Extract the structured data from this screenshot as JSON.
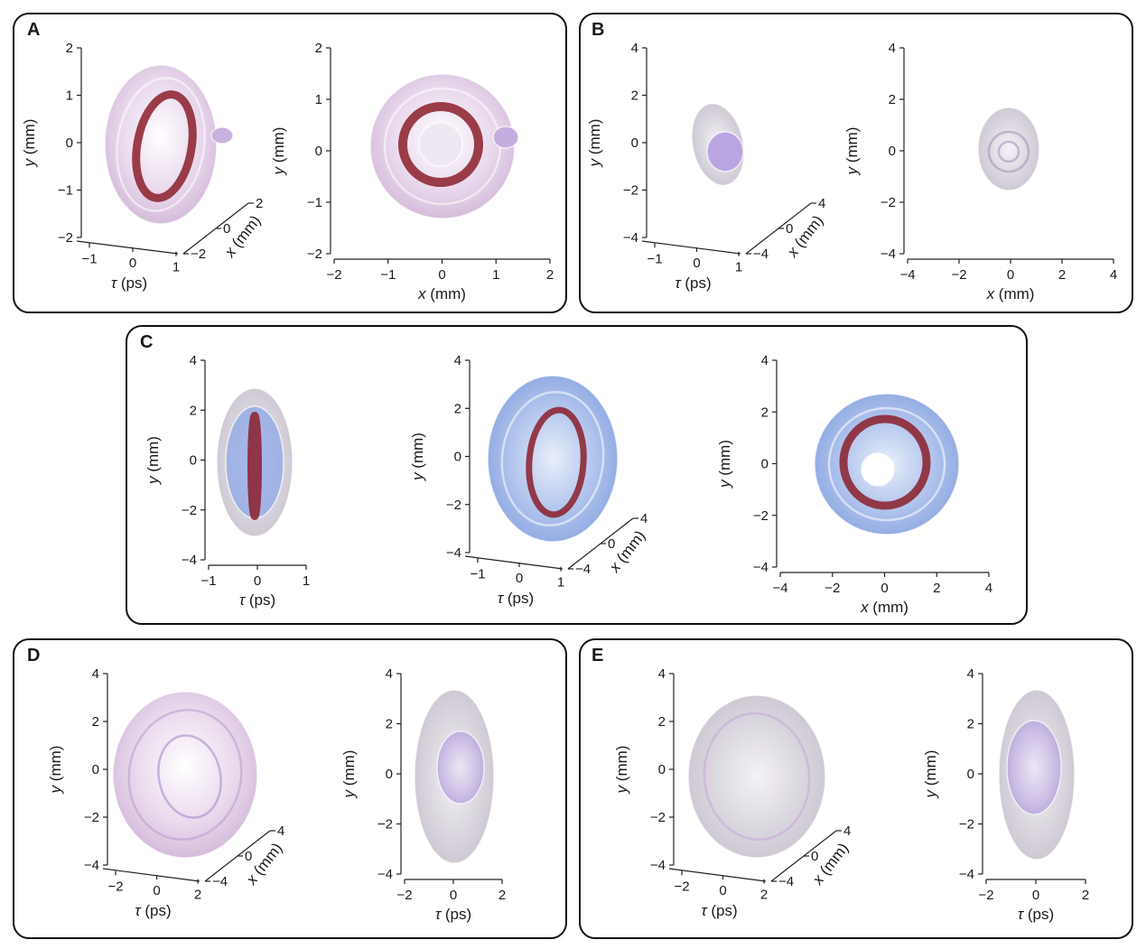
{
  "figure": {
    "panels": [
      {
        "label": "A",
        "plots": [
          {
            "kind": "oblique",
            "y_ticks": [
              "2",
              "1",
              "0",
              "−1",
              "−2"
            ],
            "tau_ticks": [
              "−1",
              "0",
              "1"
            ],
            "x_ticks": [
              "2",
              "0",
              "−2"
            ]
          },
          {
            "kind": "front",
            "y_ticks": [
              "2",
              "1",
              "0",
              "−1",
              "−2"
            ],
            "x_ticks": [
              "−2",
              "−1",
              "0",
              "1",
              "2"
            ]
          }
        ]
      },
      {
        "label": "B",
        "plots": [
          {
            "kind": "oblique",
            "y_ticks": [
              "4",
              "2",
              "0",
              "−2",
              "−4"
            ],
            "tau_ticks": [
              "−1",
              "0",
              "1"
            ],
            "x_ticks": [
              "4",
              "0",
              "−4"
            ]
          },
          {
            "kind": "front",
            "y_ticks": [
              "4",
              "2",
              "0",
              "−2",
              "−4"
            ],
            "x_ticks": [
              "−4",
              "−2",
              "0",
              "2",
              "4"
            ]
          }
        ]
      },
      {
        "label": "C",
        "plots": [
          {
            "kind": "side",
            "y_ticks": [
              "4",
              "2",
              "0",
              "−2",
              "−4"
            ],
            "tau_ticks": [
              "−1",
              "0",
              "1"
            ]
          },
          {
            "kind": "oblique",
            "y_ticks": [
              "4",
              "2",
              "0",
              "−2",
              "−4"
            ],
            "tau_ticks": [
              "−1",
              "0",
              "1"
            ],
            "x_ticks": [
              "4",
              "0",
              "−4"
            ]
          },
          {
            "kind": "front",
            "y_ticks": [
              "4",
              "2",
              "0",
              "−2",
              "−4"
            ],
            "x_ticks": [
              "−4",
              "−2",
              "0",
              "2",
              "4"
            ]
          }
        ]
      },
      {
        "label": "D",
        "plots": [
          {
            "kind": "oblique",
            "y_ticks": [
              "4",
              "2",
              "0",
              "−2",
              "−4"
            ],
            "tau_ticks": [
              "−2",
              "0",
              "2"
            ],
            "x_ticks": [
              "4",
              "0",
              "−4"
            ]
          },
          {
            "kind": "side",
            "y_ticks": [
              "4",
              "2",
              "0",
              "−2",
              "−4"
            ],
            "tau_ticks": [
              "−2",
              "0",
              "2"
            ]
          }
        ]
      },
      {
        "label": "E",
        "plots": [
          {
            "kind": "oblique",
            "y_ticks": [
              "4",
              "2",
              "0",
              "−2",
              "−4"
            ],
            "tau_ticks": [
              "−2",
              "0",
              "2"
            ],
            "x_ticks": [
              "4",
              "0",
              "−4"
            ]
          },
          {
            "kind": "side",
            "y_ticks": [
              "4",
              "2",
              "0",
              "−2",
              "−4"
            ],
            "tau_ticks": [
              "−2",
              "0",
              "2"
            ]
          }
        ]
      }
    ],
    "axis_labels": {
      "y_var": "y",
      "y_unit": " (mm)",
      "x_var": "x",
      "x_unit": " (mm)",
      "tau_var": "τ",
      "tau_unit": " (ps)"
    },
    "colors": {
      "frame": "#111111",
      "pink_shell": "#d9b8dc",
      "lavender_core": "#b39ddb",
      "blue_shell": "#7f9fe0",
      "ring": "#8b1e2a",
      "axis": "#222222"
    }
  }
}
